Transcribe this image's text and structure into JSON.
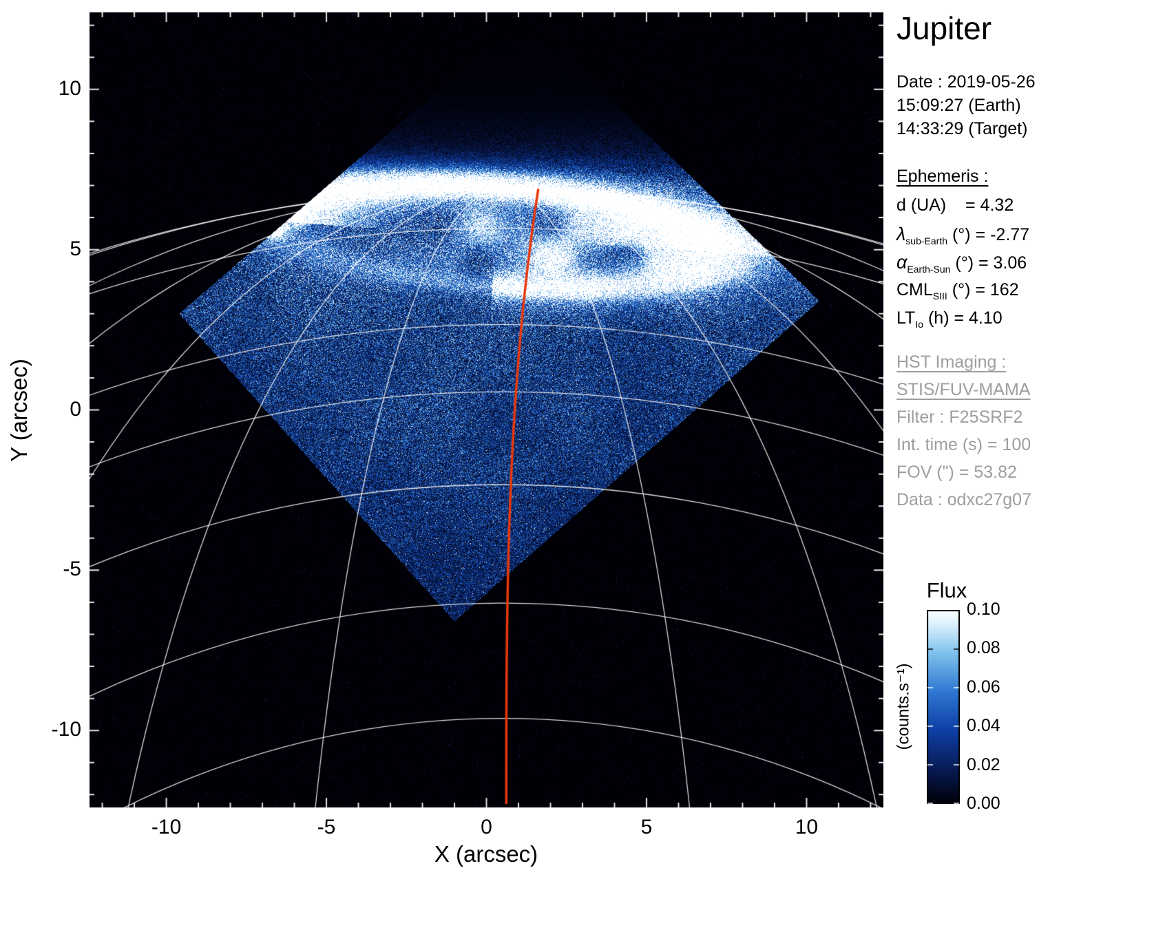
{
  "info": {
    "title": "Jupiter",
    "date_lines": [
      "Date : 2019-05-26",
      "15:09:27 (Earth)",
      "14:33:29 (Target)"
    ],
    "ephemeris": {
      "heading": "Ephemeris : ",
      "rows": [
        {
          "symbol": "d",
          "sub": "",
          "rest": " (UA)    = 4.32"
        },
        {
          "symbol": "λ",
          "sub": "sub-Earth",
          "rest": " (°) = -2.77"
        },
        {
          "symbol": "α",
          "sub": "Earth-Sun",
          "rest": " (°) = 3.06"
        },
        {
          "symbol": "CML",
          "sub": "SIII",
          "rest": " (°) = 162"
        },
        {
          "symbol": "LT",
          "sub": "Io",
          "rest": " (h) = 4.10"
        }
      ]
    },
    "hst": {
      "heading": "HST Imaging : ",
      "instrument": "STIS/FUV-MAMA",
      "lines": [
        "Filter : F25SRF2",
        "Int. time (s) = 100",
        "FOV (\") = 53.82",
        "Data : odxc27g07"
      ]
    },
    "colorbar": {
      "title": "Flux",
      "unit": "(counts.s⁻¹)",
      "tick_labels": [
        "0.10",
        "0.08",
        "0.06",
        "0.04",
        "0.02",
        "0.00"
      ]
    }
  },
  "chart_data": {
    "type": "heatmap",
    "title": "Jupiter",
    "xlabel": "X (arcsec)",
    "ylabel": "Y (arcsec)",
    "xlim": [
      -12.4,
      12.4
    ],
    "ylim": [
      -12.4,
      12.4
    ],
    "x_ticks": [
      -10,
      -5,
      0,
      5,
      10
    ],
    "y_ticks": [
      10,
      5,
      0,
      -5,
      -10
    ],
    "grid": false,
    "legend": false,
    "colorbar": {
      "label": "Flux (counts.s⁻¹)",
      "range": [
        0.0,
        0.1
      ],
      "ticks": [
        0.1,
        0.08,
        0.06,
        0.04,
        0.02,
        0.0
      ]
    },
    "colormap_stops": [
      [
        0,
        "#000006"
      ],
      [
        0.18,
        "#081b55"
      ],
      [
        0.38,
        "#0d3fa6"
      ],
      [
        0.58,
        "#2f78d2"
      ],
      [
        0.78,
        "#7fc2ec"
      ],
      [
        0.92,
        "#d8effb"
      ],
      [
        1,
        "#ffffff"
      ]
    ],
    "aperture_polygon": [
      [
        -1.0,
        -6.6
      ],
      [
        -9.6,
        3.0
      ],
      [
        1.2,
        12.3
      ],
      [
        10.4,
        3.4
      ]
    ],
    "aurora": {
      "center": [
        0.3,
        5.4
      ],
      "a": 6.9,
      "b": 1.55,
      "rot_deg": -4,
      "io_footprint": [
        -6.6,
        5.75
      ]
    },
    "cml_line": {
      "color": "#e8380b",
      "x_bottom": 0.62,
      "x_top": 1.62,
      "y_top": 6.9,
      "y_bottom": -12.4
    },
    "graticule": {
      "planet_center": [
        0.5,
        -36.0
      ],
      "lat_radii": [
        42.9,
        41.7,
        38.7,
        36.6,
        33.7,
        30.0,
        26.4
      ],
      "meridian_half_widths": [
        7,
        14,
        21,
        28,
        35,
        42
      ]
    },
    "noise_seed": 20190526
  }
}
